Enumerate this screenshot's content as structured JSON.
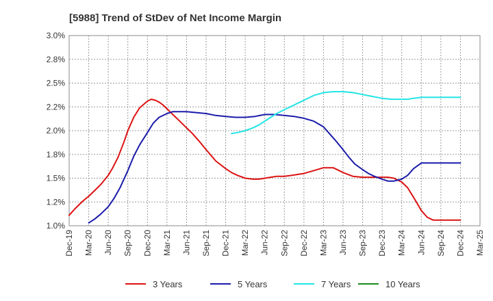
{
  "chart_data": {
    "type": "line",
    "title": "[5988]  Trend of StDev of Net Income Margin",
    "xlabel": "",
    "ylabel": "",
    "x_ticks": [
      "Dec-19",
      "Mar-20",
      "Jun-20",
      "Sep-20",
      "Dec-20",
      "Mar-21",
      "Jun-21",
      "Sep-21",
      "Dec-21",
      "Mar-22",
      "Jun-22",
      "Sep-22",
      "Dec-22",
      "Mar-23",
      "Jun-23",
      "Sep-23",
      "Dec-23",
      "Mar-24",
      "Jun-24",
      "Sep-24",
      "Dec-24",
      "Mar-25"
    ],
    "y_ticks": [
      "1.0%",
      "1.2%",
      "1.5%",
      "1.8%",
      "2.0%",
      "2.2%",
      "2.5%",
      "2.8%",
      "3.0%"
    ],
    "ylim": [
      1.0,
      3.0
    ],
    "grid": true,
    "legend_position": "bottom",
    "series": [
      {
        "name": "3 Years",
        "color": "#dd1111",
        "x": [
          0,
          0.3,
          0.5,
          0.7,
          1,
          1.3,
          1.6,
          1.8,
          2,
          2.2,
          2.5,
          2.8,
          3,
          3.3,
          3.6,
          4,
          4.2,
          4.4,
          4.6,
          4.8,
          5,
          5.3,
          5.6,
          6,
          6.3,
          6.6,
          7,
          7.5,
          8,
          8.3,
          8.6,
          9,
          9.4,
          9.7,
          10,
          10.3,
          10.6,
          11,
          11.4,
          11.7,
          12,
          12.5,
          13,
          13.5,
          14,
          14.5,
          15,
          15.5,
          16,
          16.3,
          16.6,
          17,
          17.3,
          17.6,
          18,
          18.3,
          18.6,
          19,
          19.3,
          19.6,
          19.8,
          20
        ],
        "values": [
          1.11,
          1.18,
          1.22,
          1.26,
          1.31,
          1.37,
          1.43,
          1.48,
          1.53,
          1.6,
          1.72,
          1.88,
          2.0,
          2.14,
          2.24,
          2.31,
          2.33,
          2.32,
          2.3,
          2.27,
          2.23,
          2.17,
          2.11,
          2.03,
          1.97,
          1.9,
          1.8,
          1.68,
          1.6,
          1.56,
          1.53,
          1.5,
          1.49,
          1.49,
          1.5,
          1.51,
          1.52,
          1.52,
          1.53,
          1.54,
          1.55,
          1.58,
          1.61,
          1.61,
          1.56,
          1.52,
          1.51,
          1.51,
          1.51,
          1.51,
          1.5,
          1.46,
          1.4,
          1.3,
          1.16,
          1.09,
          1.06,
          1.06,
          1.06,
          1.06,
          1.06,
          1.06
        ]
      },
      {
        "name": "5 Years",
        "color": "#1a1aaa",
        "x": [
          1,
          1.3,
          1.6,
          2,
          2.3,
          2.6,
          3,
          3.3,
          3.6,
          4,
          4.3,
          4.6,
          5,
          5.3,
          5.6,
          6,
          6.5,
          7,
          7.5,
          8,
          8.5,
          9,
          9.5,
          10,
          10.5,
          11,
          11.5,
          12,
          12.5,
          13,
          13.3,
          13.6,
          14,
          14.3,
          14.6,
          15,
          15.3,
          15.6,
          16,
          16.3,
          16.6,
          17,
          17.3,
          17.6,
          18,
          18.3,
          18.6,
          19,
          19.3,
          19.6,
          20
        ],
        "values": [
          1.03,
          1.07,
          1.12,
          1.2,
          1.29,
          1.4,
          1.58,
          1.73,
          1.85,
          1.98,
          2.08,
          2.14,
          2.18,
          2.2,
          2.2,
          2.2,
          2.19,
          2.18,
          2.16,
          2.15,
          2.14,
          2.14,
          2.15,
          2.17,
          2.17,
          2.16,
          2.15,
          2.13,
          2.1,
          2.04,
          1.97,
          1.9,
          1.8,
          1.72,
          1.65,
          1.59,
          1.55,
          1.52,
          1.49,
          1.47,
          1.47,
          1.49,
          1.53,
          1.6,
          1.66,
          1.66,
          1.66,
          1.66,
          1.66,
          1.66,
          1.66
        ]
      },
      {
        "name": "7 Years",
        "color": "#22e5e5",
        "x": [
          8.3,
          8.6,
          9,
          9.4,
          9.7,
          10,
          10.3,
          10.6,
          11,
          11.4,
          11.7,
          12,
          12.5,
          13,
          13.5,
          14,
          14.5,
          15,
          15.5,
          16,
          16.5,
          17,
          17.3,
          17.6,
          18,
          18.3,
          18.6,
          19,
          19.3,
          19.6,
          20
        ],
        "values": [
          1.97,
          1.98,
          2.0,
          2.03,
          2.06,
          2.1,
          2.14,
          2.18,
          2.22,
          2.26,
          2.29,
          2.32,
          2.37,
          2.4,
          2.41,
          2.41,
          2.4,
          2.38,
          2.36,
          2.34,
          2.33,
          2.33,
          2.33,
          2.34,
          2.35,
          2.35,
          2.35,
          2.35,
          2.35,
          2.35,
          2.35
        ]
      },
      {
        "name": "10 Years",
        "color": "#1a8a1a",
        "x": [],
        "values": []
      }
    ]
  }
}
